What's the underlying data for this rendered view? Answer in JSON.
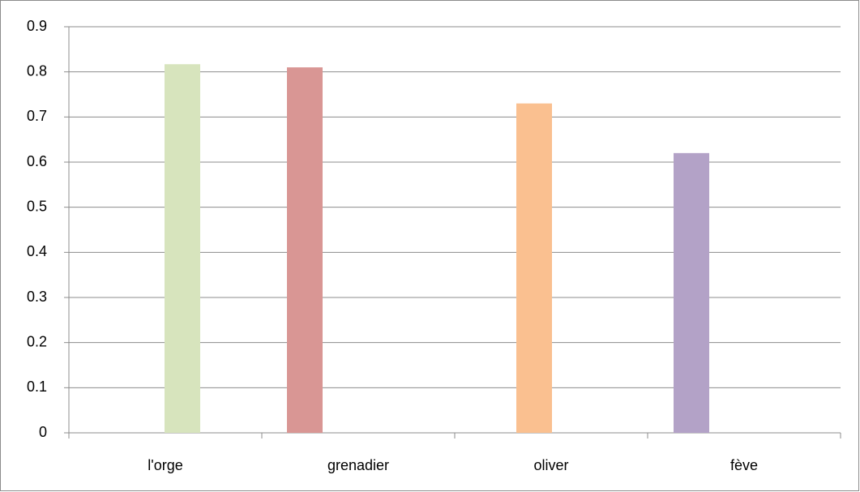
{
  "chart_data": {
    "type": "bar",
    "categories": [
      "l'orge",
      "grenadier",
      "oliver",
      "fève"
    ],
    "values": [
      0.817,
      0.81,
      0.73,
      0.62
    ],
    "colors": [
      "#d7e4bd",
      "#d99694",
      "#fac090",
      "#b3a2c7"
    ],
    "ylim": [
      0,
      0.9
    ],
    "yticks": [
      0,
      0.1,
      0.2,
      0.3,
      0.4,
      0.5,
      0.6,
      0.7,
      0.8,
      0.9
    ],
    "grid": true
  }
}
